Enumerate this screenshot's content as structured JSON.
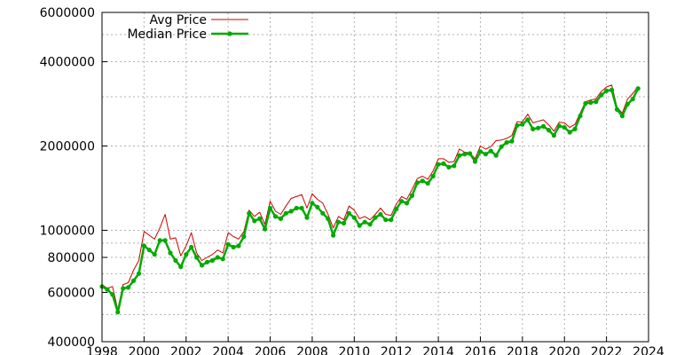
{
  "chart_data": {
    "type": "line",
    "xlabel": "",
    "ylabel": "",
    "xlim": [
      1998,
      2024
    ],
    "ylim": [
      400000,
      6000000
    ],
    "yscale": "log",
    "grid": true,
    "legend_position": "top-left",
    "x_ticks": [
      "1998",
      "2000",
      "2002",
      "2004",
      "2006",
      "2008",
      "2010",
      "2012",
      "2014",
      "2016",
      "2018",
      "2020",
      "2022",
      "2024"
    ],
    "y_ticks": [
      "400000",
      "600000",
      "800000",
      "1000000",
      "2000000",
      "4000000",
      "6000000"
    ],
    "series": [
      {
        "name": "Avg Price",
        "color": "#cc0000",
        "marker": false,
        "x": [
          1998.0,
          1998.25,
          1998.5,
          1998.75,
          1999.0,
          1999.25,
          1999.5,
          1999.75,
          2000.0,
          2000.25,
          2000.5,
          2000.75,
          2001.0,
          2001.25,
          2001.5,
          2001.75,
          2002.0,
          2002.25,
          2002.5,
          2002.75,
          2003.0,
          2003.25,
          2003.5,
          2003.75,
          2004.0,
          2004.25,
          2004.5,
          2004.75,
          2005.0,
          2005.25,
          2005.5,
          2005.75,
          2006.0,
          2006.25,
          2006.5,
          2006.75,
          2007.0,
          2007.25,
          2007.5,
          2007.75,
          2008.0,
          2008.25,
          2008.5,
          2008.75,
          2009.0,
          2009.25,
          2009.5,
          2009.75,
          2010.0,
          2010.25,
          2010.5,
          2010.75,
          2011.0,
          2011.25,
          2011.5,
          2011.75,
          2012.0,
          2012.25,
          2012.5,
          2012.75,
          2013.0,
          2013.25,
          2013.5,
          2013.75,
          2014.0,
          2014.25,
          2014.5,
          2014.75,
          2015.0,
          2015.25,
          2015.5,
          2015.75,
          2016.0,
          2016.25,
          2016.5,
          2016.75,
          2017.0,
          2017.25,
          2017.5,
          2017.75,
          2018.0,
          2018.25,
          2018.5,
          2018.75,
          2019.0,
          2019.25,
          2019.5,
          2019.75,
          2020.0,
          2020.25,
          2020.5,
          2020.75,
          2021.0,
          2021.25,
          2021.5,
          2021.75,
          2022.0,
          2022.25,
          2022.5,
          2022.75,
          2023.0,
          2023.25,
          2023.5
        ],
        "values": [
          640000,
          620000,
          630000,
          520000,
          640000,
          650000,
          720000,
          780000,
          990000,
          960000,
          930000,
          1020000,
          1140000,
          930000,
          940000,
          810000,
          880000,
          980000,
          830000,
          780000,
          800000,
          820000,
          850000,
          830000,
          980000,
          950000,
          930000,
          990000,
          1180000,
          1120000,
          1160000,
          1050000,
          1270000,
          1170000,
          1140000,
          1220000,
          1300000,
          1320000,
          1340000,
          1200000,
          1350000,
          1290000,
          1250000,
          1140000,
          1020000,
          1120000,
          1090000,
          1220000,
          1180000,
          1100000,
          1120000,
          1090000,
          1140000,
          1200000,
          1140000,
          1130000,
          1240000,
          1320000,
          1290000,
          1400000,
          1530000,
          1560000,
          1520000,
          1630000,
          1800000,
          1800000,
          1750000,
          1760000,
          1950000,
          1900000,
          1890000,
          1800000,
          2000000,
          1950000,
          1990000,
          2090000,
          2100000,
          2130000,
          2180000,
          2440000,
          2440000,
          2600000,
          2420000,
          2450000,
          2480000,
          2380000,
          2260000,
          2430000,
          2420000,
          2330000,
          2390000,
          2620000,
          2880000,
          2920000,
          2950000,
          3130000,
          3250000,
          3300000,
          2750000,
          2620000,
          2940000,
          3080000,
          3260000
        ]
      },
      {
        "name": "Median Price",
        "color": "#00aa00",
        "marker": true,
        "x": [
          1998.0,
          1998.25,
          1998.5,
          1998.75,
          1999.0,
          1999.25,
          1999.5,
          1999.75,
          2000.0,
          2000.25,
          2000.5,
          2000.75,
          2001.0,
          2001.25,
          2001.5,
          2001.75,
          2002.0,
          2002.25,
          2002.5,
          2002.75,
          2003.0,
          2003.25,
          2003.5,
          2003.75,
          2004.0,
          2004.25,
          2004.5,
          2004.75,
          2005.0,
          2005.25,
          2005.5,
          2005.75,
          2006.0,
          2006.25,
          2006.5,
          2006.75,
          2007.0,
          2007.25,
          2007.5,
          2007.75,
          2008.0,
          2008.25,
          2008.5,
          2008.75,
          2009.0,
          2009.25,
          2009.5,
          2009.75,
          2010.0,
          2010.25,
          2010.5,
          2010.75,
          2011.0,
          2011.25,
          2011.5,
          2011.75,
          2012.0,
          2012.25,
          2012.5,
          2012.75,
          2013.0,
          2013.25,
          2013.5,
          2013.75,
          2014.0,
          2014.25,
          2014.5,
          2014.75,
          2015.0,
          2015.25,
          2015.5,
          2015.75,
          2016.0,
          2016.25,
          2016.5,
          2016.75,
          2017.0,
          2017.25,
          2017.5,
          2017.75,
          2018.0,
          2018.25,
          2018.5,
          2018.75,
          2019.0,
          2019.25,
          2019.5,
          2019.75,
          2020.0,
          2020.25,
          2020.5,
          2020.75,
          2021.0,
          2021.25,
          2021.5,
          2021.75,
          2022.0,
          2022.25,
          2022.5,
          2022.75,
          2023.0,
          2023.25,
          2023.5
        ],
        "values": [
          630000,
          615000,
          590000,
          510000,
          620000,
          625000,
          660000,
          700000,
          880000,
          850000,
          820000,
          920000,
          920000,
          830000,
          780000,
          740000,
          820000,
          870000,
          800000,
          750000,
          770000,
          780000,
          800000,
          790000,
          890000,
          870000,
          880000,
          950000,
          1150000,
          1080000,
          1100000,
          1010000,
          1200000,
          1120000,
          1100000,
          1150000,
          1170000,
          1200000,
          1200000,
          1110000,
          1250000,
          1210000,
          1150000,
          1100000,
          960000,
          1070000,
          1060000,
          1150000,
          1110000,
          1040000,
          1070000,
          1050000,
          1110000,
          1140000,
          1090000,
          1090000,
          1190000,
          1270000,
          1250000,
          1330000,
          1480000,
          1500000,
          1470000,
          1560000,
          1720000,
          1730000,
          1680000,
          1700000,
          1850000,
          1870000,
          1880000,
          1760000,
          1910000,
          1870000,
          1920000,
          1850000,
          1990000,
          2060000,
          2080000,
          2370000,
          2390000,
          2480000,
          2300000,
          2320000,
          2350000,
          2280000,
          2180000,
          2360000,
          2330000,
          2240000,
          2300000,
          2560000,
          2840000,
          2860000,
          2880000,
          3040000,
          3150000,
          3170000,
          2700000,
          2560000,
          2820000,
          2940000,
          3210000
        ]
      }
    ]
  }
}
